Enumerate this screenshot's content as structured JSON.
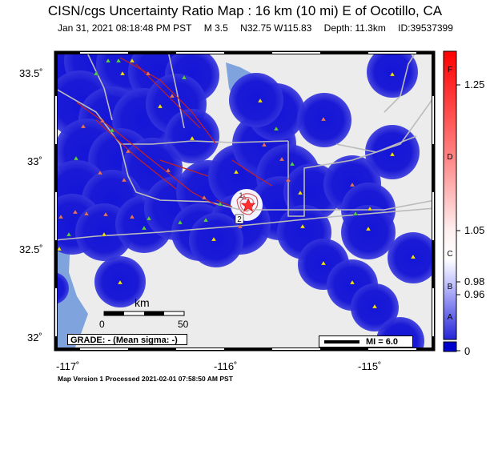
{
  "header": {
    "title": "CISN/cgs Uncertainty Ratio Map : 16 km (10 mi) E of Ocotillo, CA",
    "date": "Jan 31, 2021 08:18:48 PM PST",
    "magnitude": "M 3.5",
    "coords": "N32.75 W115.83",
    "depth": "Depth: 11.3km",
    "event_id": "ID:39537399"
  },
  "axes": {
    "lat_ticks": [
      "33.5˚",
      "33˚",
      "32.5˚",
      "32˚"
    ],
    "lon_ticks": [
      "-117˚",
      "-116˚",
      "-115˚"
    ]
  },
  "scale_bar": {
    "unit": "km",
    "start": "0",
    "end": "50"
  },
  "grade": {
    "text": "GRADE: - (Mean sigma: -)"
  },
  "mi_legend": {
    "text": "MI = 6.0"
  },
  "station_labels": [
    "1",
    "2"
  ],
  "colorbar": {
    "values": [
      "1.25",
      "1.05",
      "0.98",
      "0.96",
      "0"
    ],
    "grades": [
      "F",
      "D",
      "C",
      "B",
      "A"
    ],
    "colors": {
      "low": "#0000cc",
      "mid": "#f2f2ff",
      "high": "#ff0000"
    }
  },
  "footer": {
    "text": "Map Version 1 Processed 2021-02-01 07:58:50 AM PST"
  },
  "colors": {
    "land": "#ececec",
    "water": "#7fa3dc",
    "uncertainty": "#1a1ad6",
    "fault": "#cc2222",
    "station_yellow": "#f2e11a",
    "station_green": "#55d055",
    "station_red": "#e87070"
  }
}
